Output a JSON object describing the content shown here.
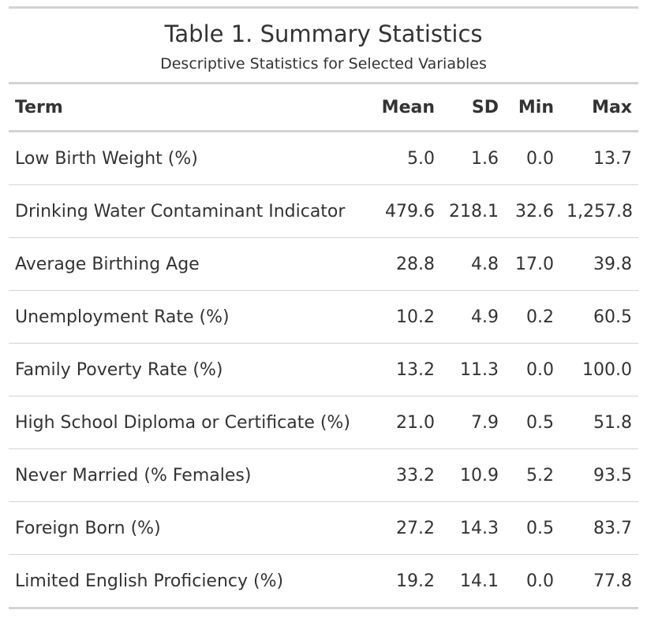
{
  "table": {
    "title": "Table 1. Summary Statistics",
    "subtitle": "Descriptive Statistics for Selected Variables",
    "columns": [
      "Term",
      "Mean",
      "SD",
      "Min",
      "Max"
    ],
    "rows": [
      [
        "Low Birth Weight (%)",
        "5.0",
        "1.6",
        "0.0",
        "13.7"
      ],
      [
        "Drinking Water Contaminant Indicator",
        "479.6",
        "218.1",
        "32.6",
        "1,257.8"
      ],
      [
        "Average Birthing Age",
        "28.8",
        "4.8",
        "17.0",
        "39.8"
      ],
      [
        "Unemployment Rate (%)",
        "10.2",
        "4.9",
        "0.2",
        "60.5"
      ],
      [
        "Family Poverty Rate (%)",
        "13.2",
        "11.3",
        "0.0",
        "100.0"
      ],
      [
        "High School Diploma or Certificate (%)",
        "21.0",
        "7.9",
        "0.5",
        "51.8"
      ],
      [
        "Never Married (% Females)",
        "33.2",
        "10.9",
        "5.2",
        "93.5"
      ],
      [
        "Foreign Born (%)",
        "27.2",
        "14.3",
        "0.5",
        "83.7"
      ],
      [
        "Limited English Proficiency (%)",
        "19.2",
        "14.1",
        "0.0",
        "77.8"
      ]
    ]
  }
}
